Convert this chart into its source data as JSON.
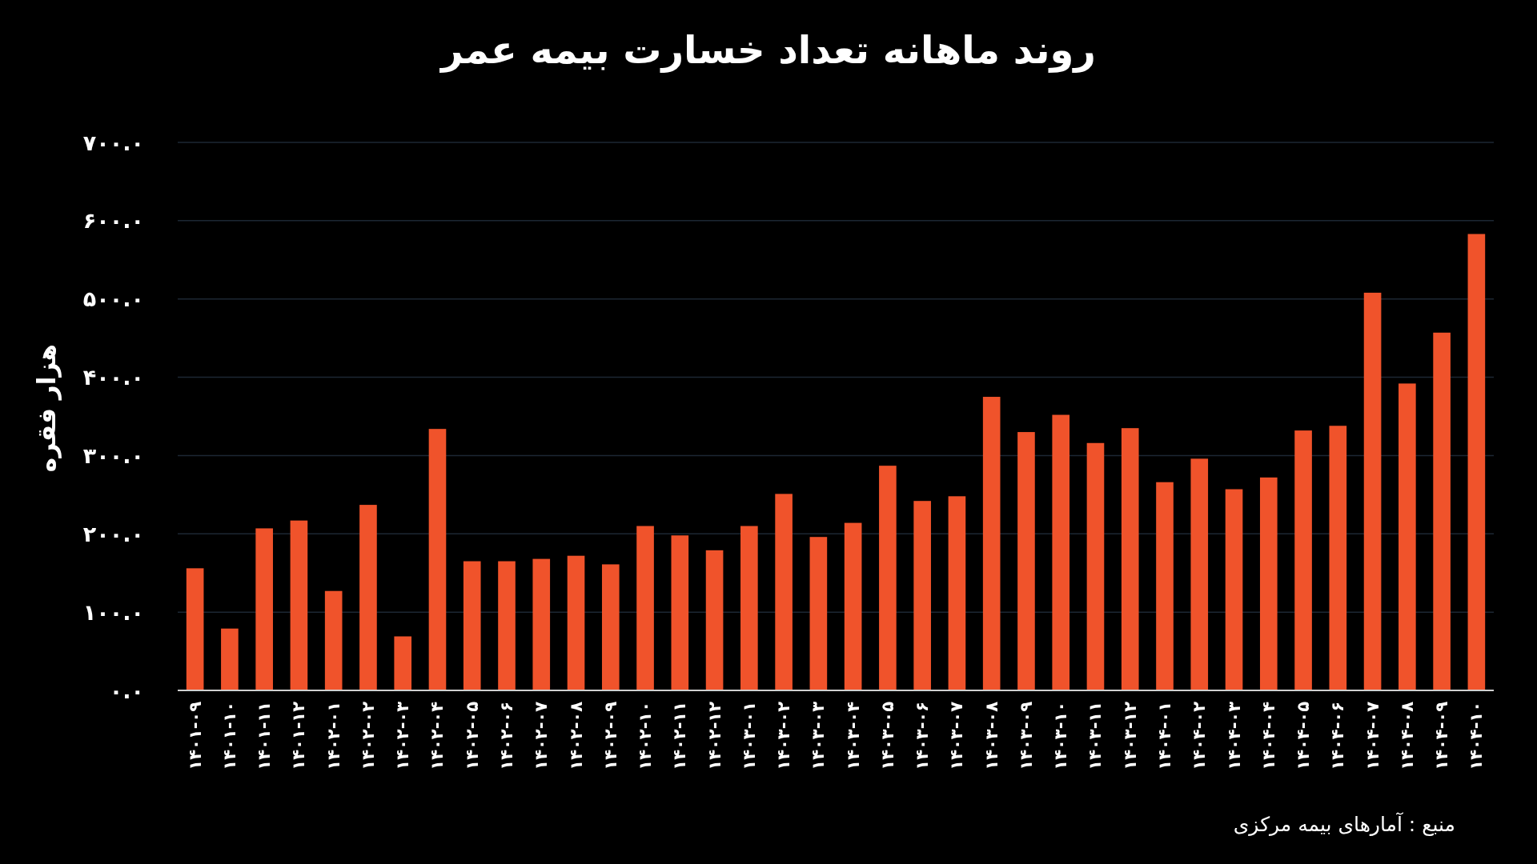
{
  "chart_data": {
    "type": "bar",
    "title": "روند ماهانه تعداد خسارت بیمه عمر",
    "ylabel": "هزار فقره",
    "categories": [
      "۱۴۰۱-۰۹",
      "۱۴۰۱-۱۰",
      "۱۴۰۱-۱۱",
      "۱۴۰۱-۱۲",
      "۱۴۰۲-۰۱",
      "۱۴۰۲-۰۲",
      "۱۴۰۲-۰۳",
      "۱۴۰۲-۰۴",
      "۱۴۰۲-۰۵",
      "۱۴۰۲-۰۶",
      "۱۴۰۲-۰۷",
      "۱۴۰۲-۰۸",
      "۱۴۰۲-۰۹",
      "۱۴۰۲-۱۰",
      "۱۴۰۲-۱۱",
      "۱۴۰۲-۱۲",
      "۱۴۰۳-۰۱",
      "۱۴۰۳-۰۲",
      "۱۴۰۳-۰۳",
      "۱۴۰۳-۰۴",
      "۱۴۰۳-۰۵",
      "۱۴۰۳-۰۶",
      "۱۴۰۳-۰۷",
      "۱۴۰۳-۰۸",
      "۱۴۰۳-۰۹",
      "۱۴۰۳-۱۰",
      "۱۴۰۳-۱۱",
      "۱۴۰۳-۱۲",
      "۱۴۰۴-۰۱",
      "۱۴۰۴-۰۲",
      "۱۴۰۴-۰۳",
      "۱۴۰۴-۰۴",
      "۱۴۰۴-۰۵",
      "۱۴۰۴-۰۶",
      "۱۴۰۴-۰۷",
      "۱۴۰۴-۰۸",
      "۱۴۰۴-۰۹",
      "۱۴۰۴-۱۰"
    ],
    "values": [
      156,
      79,
      207,
      217,
      127,
      237,
      69,
      334,
      165,
      165,
      168,
      172,
      161,
      210,
      198,
      179,
      210,
      251,
      196,
      214,
      287,
      242,
      248,
      375,
      330,
      352,
      316,
      335,
      266,
      296,
      257,
      272,
      332,
      338,
      508,
      392,
      457,
      583
    ],
    "color": "#f0532b",
    "ylim": [
      0,
      700
    ],
    "yticks": [
      {
        "value": 0,
        "label": "۰.۰"
      },
      {
        "value": 100,
        "label": "۱۰۰.۰"
      },
      {
        "value": 200,
        "label": "۲۰۰.۰"
      },
      {
        "value": 300,
        "label": "۳۰۰.۰"
      },
      {
        "value": 400,
        "label": "۴۰۰.۰"
      },
      {
        "value": 500,
        "label": "۵۰۰.۰"
      },
      {
        "value": 600,
        "label": "۶۰۰.۰"
      },
      {
        "value": 700,
        "label": "۷۰۰.۰"
      }
    ],
    "grid": "y",
    "annotations": [
      "منبع : آمارهای بیمه مرکزی"
    ]
  }
}
